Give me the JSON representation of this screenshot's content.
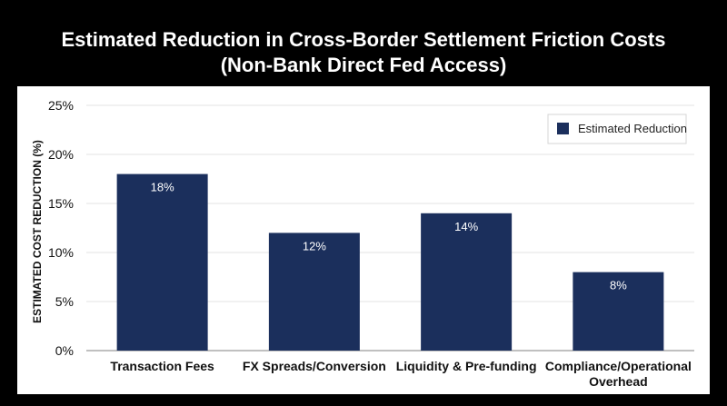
{
  "chart_data": {
    "type": "bar",
    "title": "Estimated Reduction in Cross-Border Settlement Friction Costs",
    "subtitle": "(Non-Bank Direct Fed Access)",
    "categories": [
      [
        "Transaction Fees"
      ],
      [
        "FX Spreads/Conversion"
      ],
      [
        "Liquidity & Pre-funding"
      ],
      [
        "Compliance/Operational",
        "Overhead"
      ]
    ],
    "series": [
      {
        "name": "Estimated Reduction",
        "values": [
          18,
          12,
          14,
          8
        ],
        "color": "#1b2f5c"
      }
    ],
    "data_labels": [
      "18%",
      "12%",
      "14%",
      "8%"
    ],
    "xlabel": "",
    "ylabel": "ESTIMATED COST REDUCTION (%)",
    "ylim": [
      0,
      25
    ],
    "yticks": [
      0,
      5,
      10,
      15,
      20,
      25
    ],
    "ytick_labels": [
      "0%",
      "5%",
      "10%",
      "15%",
      "20%",
      "25%"
    ],
    "grid": "horizontal",
    "legend_position": "top-right",
    "background": "#000000",
    "plot_background": "#ffffff"
  }
}
